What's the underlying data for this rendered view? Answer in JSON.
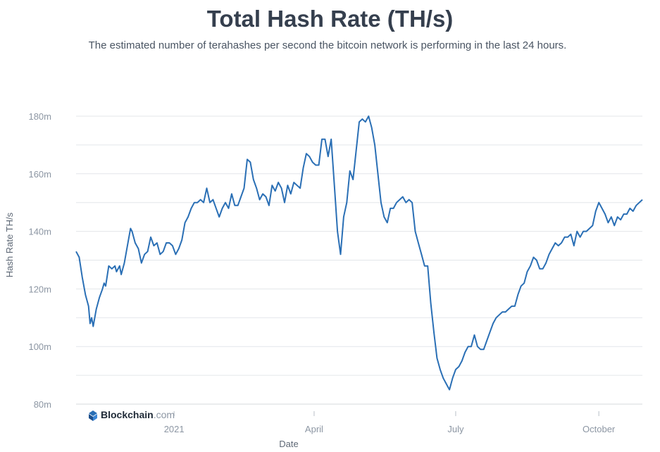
{
  "header": {
    "title": "Total Hash Rate (TH/s)",
    "subtitle": "The estimated number of terahashes per second the bitcoin network is performing in the last 24 hours."
  },
  "brand": {
    "name": "Blockchain",
    "suffix": ".com",
    "icon": "blockchain-logo-icon"
  },
  "colors": {
    "line": "#2a6fb5",
    "grid": "#e3e6ea",
    "tick": "#8c96a3"
  },
  "chart_data": {
    "type": "line",
    "title": "Total Hash Rate (TH/s)",
    "xlabel": "Date",
    "ylabel": "Hash Rate TH/s",
    "ylim": [
      80,
      180
    ],
    "yticks": [
      80,
      100,
      120,
      140,
      160,
      180
    ],
    "ytick_labels": [
      "80m",
      "100m",
      "120m",
      "140m",
      "160m",
      "180m"
    ],
    "xlim": [
      "2020-10-30",
      "2021-10-29"
    ],
    "xticks": [
      {
        "date": "2021-01-01",
        "label": "2021"
      },
      {
        "date": "2021-04-01",
        "label": "April"
      },
      {
        "date": "2021-07-01",
        "label": "July"
      },
      {
        "date": "2021-10-01",
        "label": "October"
      }
    ],
    "grid": true,
    "legend": "none",
    "series": [
      {
        "values": [
          [
            "2020-10-30",
            133
          ],
          [
            "2020-11-01",
            131
          ],
          [
            "2020-11-03",
            124
          ],
          [
            "2020-11-05",
            118
          ],
          [
            "2020-11-07",
            114
          ],
          [
            "2020-11-08",
            108
          ],
          [
            "2020-11-09",
            110
          ],
          [
            "2020-11-10",
            107
          ],
          [
            "2020-11-12",
            113
          ],
          [
            "2020-11-14",
            117
          ],
          [
            "2020-11-16",
            120
          ],
          [
            "2020-11-17",
            122
          ],
          [
            "2020-11-18",
            121
          ],
          [
            "2020-11-20",
            128
          ],
          [
            "2020-11-22",
            127
          ],
          [
            "2020-11-24",
            128
          ],
          [
            "2020-11-25",
            126
          ],
          [
            "2020-11-27",
            128
          ],
          [
            "2020-11-28",
            125
          ],
          [
            "2020-11-30",
            129
          ],
          [
            "2020-12-02",
            135
          ],
          [
            "2020-12-04",
            141
          ],
          [
            "2020-12-05",
            140
          ],
          [
            "2020-12-07",
            136
          ],
          [
            "2020-12-09",
            134
          ],
          [
            "2020-12-11",
            129
          ],
          [
            "2020-12-13",
            132
          ],
          [
            "2020-12-15",
            133
          ],
          [
            "2020-12-17",
            138
          ],
          [
            "2020-12-19",
            135
          ],
          [
            "2020-12-21",
            136
          ],
          [
            "2020-12-23",
            132
          ],
          [
            "2020-12-25",
            133
          ],
          [
            "2020-12-27",
            136
          ],
          [
            "2020-12-29",
            136
          ],
          [
            "2020-12-31",
            135
          ],
          [
            "2021-01-02",
            132
          ],
          [
            "2021-01-04",
            134
          ],
          [
            "2021-01-06",
            137
          ],
          [
            "2021-01-08",
            143
          ],
          [
            "2021-01-10",
            145
          ],
          [
            "2021-01-12",
            148
          ],
          [
            "2021-01-14",
            150
          ],
          [
            "2021-01-16",
            150
          ],
          [
            "2021-01-18",
            151
          ],
          [
            "2021-01-20",
            150
          ],
          [
            "2021-01-22",
            155
          ],
          [
            "2021-01-24",
            150
          ],
          [
            "2021-01-26",
            151
          ],
          [
            "2021-01-28",
            148
          ],
          [
            "2021-01-30",
            145
          ],
          [
            "2021-02-01",
            148
          ],
          [
            "2021-02-03",
            150
          ],
          [
            "2021-02-05",
            148
          ],
          [
            "2021-02-07",
            153
          ],
          [
            "2021-02-09",
            149
          ],
          [
            "2021-02-11",
            149
          ],
          [
            "2021-02-13",
            152
          ],
          [
            "2021-02-15",
            155
          ],
          [
            "2021-02-17",
            165
          ],
          [
            "2021-02-19",
            164
          ],
          [
            "2021-02-21",
            158
          ],
          [
            "2021-02-23",
            155
          ],
          [
            "2021-02-25",
            151
          ],
          [
            "2021-02-27",
            153
          ],
          [
            "2021-03-01",
            152
          ],
          [
            "2021-03-03",
            149
          ],
          [
            "2021-03-05",
            156
          ],
          [
            "2021-03-07",
            154
          ],
          [
            "2021-03-09",
            157
          ],
          [
            "2021-03-11",
            155
          ],
          [
            "2021-03-13",
            150
          ],
          [
            "2021-03-15",
            156
          ],
          [
            "2021-03-17",
            153
          ],
          [
            "2021-03-19",
            157
          ],
          [
            "2021-03-21",
            156
          ],
          [
            "2021-03-23",
            155
          ],
          [
            "2021-03-25",
            162
          ],
          [
            "2021-03-27",
            167
          ],
          [
            "2021-03-29",
            166
          ],
          [
            "2021-03-31",
            164
          ],
          [
            "2021-04-02",
            163
          ],
          [
            "2021-04-04",
            163
          ],
          [
            "2021-04-06",
            172
          ],
          [
            "2021-04-08",
            172
          ],
          [
            "2021-04-10",
            166
          ],
          [
            "2021-04-12",
            172
          ],
          [
            "2021-04-14",
            156
          ],
          [
            "2021-04-16",
            140
          ],
          [
            "2021-04-18",
            132
          ],
          [
            "2021-04-20",
            145
          ],
          [
            "2021-04-22",
            150
          ],
          [
            "2021-04-24",
            161
          ],
          [
            "2021-04-26",
            158
          ],
          [
            "2021-04-28",
            168
          ],
          [
            "2021-04-30",
            178
          ],
          [
            "2021-05-02",
            179
          ],
          [
            "2021-05-04",
            178
          ],
          [
            "2021-05-06",
            180
          ],
          [
            "2021-05-08",
            176
          ],
          [
            "2021-05-10",
            170
          ],
          [
            "2021-05-12",
            160
          ],
          [
            "2021-05-14",
            150
          ],
          [
            "2021-05-16",
            145
          ],
          [
            "2021-05-18",
            143
          ],
          [
            "2021-05-20",
            148
          ],
          [
            "2021-05-22",
            148
          ],
          [
            "2021-05-24",
            150
          ],
          [
            "2021-05-26",
            151
          ],
          [
            "2021-05-28",
            152
          ],
          [
            "2021-05-30",
            150
          ],
          [
            "2021-06-01",
            151
          ],
          [
            "2021-06-03",
            150
          ],
          [
            "2021-06-05",
            140
          ],
          [
            "2021-06-07",
            136
          ],
          [
            "2021-06-09",
            132
          ],
          [
            "2021-06-11",
            128
          ],
          [
            "2021-06-13",
            128
          ],
          [
            "2021-06-15",
            115
          ],
          [
            "2021-06-17",
            105
          ],
          [
            "2021-06-19",
            96
          ],
          [
            "2021-06-21",
            92
          ],
          [
            "2021-06-23",
            89
          ],
          [
            "2021-06-25",
            87
          ],
          [
            "2021-06-27",
            85
          ],
          [
            "2021-06-29",
            89
          ],
          [
            "2021-07-01",
            92
          ],
          [
            "2021-07-03",
            93
          ],
          [
            "2021-07-05",
            95
          ],
          [
            "2021-07-07",
            98
          ],
          [
            "2021-07-09",
            100
          ],
          [
            "2021-07-11",
            100
          ],
          [
            "2021-07-13",
            104
          ],
          [
            "2021-07-15",
            100
          ],
          [
            "2021-07-17",
            99
          ],
          [
            "2021-07-19",
            99
          ],
          [
            "2021-07-21",
            102
          ],
          [
            "2021-07-23",
            105
          ],
          [
            "2021-07-25",
            108
          ],
          [
            "2021-07-27",
            110
          ],
          [
            "2021-07-29",
            111
          ],
          [
            "2021-07-31",
            112
          ],
          [
            "2021-08-02",
            112
          ],
          [
            "2021-08-04",
            113
          ],
          [
            "2021-08-06",
            114
          ],
          [
            "2021-08-08",
            114
          ],
          [
            "2021-08-10",
            118
          ],
          [
            "2021-08-12",
            121
          ],
          [
            "2021-08-14",
            122
          ],
          [
            "2021-08-16",
            126
          ],
          [
            "2021-08-18",
            128
          ],
          [
            "2021-08-20",
            131
          ],
          [
            "2021-08-22",
            130
          ],
          [
            "2021-08-24",
            127
          ],
          [
            "2021-08-26",
            127
          ],
          [
            "2021-08-28",
            129
          ],
          [
            "2021-08-30",
            132
          ],
          [
            "2021-09-01",
            134
          ],
          [
            "2021-09-03",
            136
          ],
          [
            "2021-09-05",
            135
          ],
          [
            "2021-09-07",
            136
          ],
          [
            "2021-09-09",
            138
          ],
          [
            "2021-09-11",
            138
          ],
          [
            "2021-09-13",
            139
          ],
          [
            "2021-09-15",
            135
          ],
          [
            "2021-09-17",
            140
          ],
          [
            "2021-09-19",
            138
          ],
          [
            "2021-09-21",
            140
          ],
          [
            "2021-09-23",
            140
          ],
          [
            "2021-09-25",
            141
          ],
          [
            "2021-09-27",
            142
          ],
          [
            "2021-09-29",
            147
          ],
          [
            "2021-10-01",
            150
          ],
          [
            "2021-10-03",
            148
          ],
          [
            "2021-10-05",
            146
          ],
          [
            "2021-10-07",
            143
          ],
          [
            "2021-10-09",
            145
          ],
          [
            "2021-10-11",
            142
          ],
          [
            "2021-10-13",
            145
          ],
          [
            "2021-10-15",
            144
          ],
          [
            "2021-10-17",
            146
          ],
          [
            "2021-10-19",
            146
          ],
          [
            "2021-10-21",
            148
          ],
          [
            "2021-10-23",
            147
          ],
          [
            "2021-10-25",
            149
          ],
          [
            "2021-10-27",
            150
          ],
          [
            "2021-10-29",
            151
          ]
        ]
      }
    ]
  }
}
